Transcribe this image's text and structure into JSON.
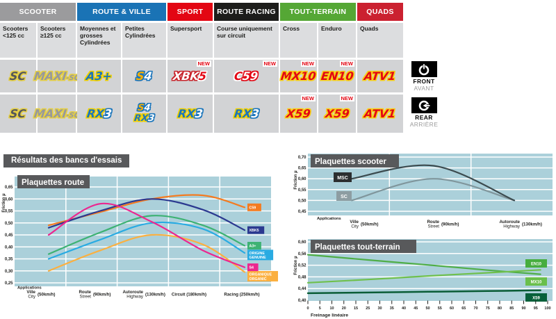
{
  "section_title": "Résultats des bancs d'essais",
  "new_badge": "NEW",
  "position_labels": {
    "front_en": "FRONT",
    "front_fr": "AVANT",
    "rear_en": "REAR",
    "rear_fr": "ARRIÈRE"
  },
  "colors": {
    "panel": "#abd0da",
    "grid": "#ffffff",
    "title_box": "#58595b",
    "axis_text": "#1d1d1b"
  },
  "table": {
    "group_headers": [
      {
        "label": "SCOOTER",
        "bg": "#9b9b9d",
        "span": 2
      },
      {
        "label": "ROUTE & VILLE",
        "bg": "#1a73b5",
        "span": 2
      },
      {
        "label": "SPORT",
        "bg": "#e30613",
        "span": 1
      },
      {
        "label": "ROUTE RACING",
        "bg": "#1d1d1b",
        "span": 1
      },
      {
        "label": "TOUT-TERRAIN",
        "bg": "#55a735",
        "span": 2
      },
      {
        "label": "QUADS",
        "bg": "#cb2130",
        "span": 1
      }
    ],
    "sub_headers": [
      "Scooters <125 cc",
      "Scooters ≥125 cc",
      "Moyennes et grosses Cylindrées",
      "Petites Cylindrées",
      "Supersport",
      "Course uniquement sur circuit",
      "Cross",
      "Enduro",
      "Quads"
    ],
    "products": {
      "sc": {
        "parts": [
          {
            "t": "SC",
            "f": "#54575b",
            "o": "#e5cf45"
          }
        ]
      },
      "maxi_sc": {
        "parts": [
          {
            "t": "MAXI",
            "f": "#97999c",
            "o": "#e5cf45"
          },
          {
            "t": "-SC",
            "f": "#97999c",
            "o": "#e5cf45",
            "small": true
          }
        ]
      },
      "a3plus": {
        "parts": [
          {
            "t": "A3+",
            "f": "#1b75bb",
            "o": "#f0d000"
          }
        ]
      },
      "s4": {
        "parts": [
          {
            "t": "S",
            "f": "#f9b000",
            "o": "#1b75bb"
          },
          {
            "t": "4",
            "f": "#ffffff",
            "o": "#1b75bb"
          }
        ]
      },
      "xbk5": {
        "parts": [
          {
            "t": "XBK",
            "f": "#ffffff",
            "o": "#c9242b"
          },
          {
            "t": "5",
            "f": "#e30613",
            "o": "#ffffff"
          }
        ]
      },
      "c59": {
        "parts": [
          {
            "t": "C",
            "f": "#e30613",
            "o": "#ffffff"
          },
          {
            "t": "59",
            "f": "#ffffff",
            "o": "#e30613"
          }
        ]
      },
      "mx10": {
        "parts": [
          {
            "t": "MX10",
            "f": "#e30613",
            "o": "#f7d117"
          }
        ]
      },
      "en10": {
        "parts": [
          {
            "t": "EN10",
            "f": "#e30613",
            "o": "#f7d117"
          }
        ]
      },
      "atv1": {
        "parts": [
          {
            "t": "ATV1",
            "f": "#e30613",
            "o": "#f7d117"
          }
        ]
      },
      "rx3": {
        "parts": [
          {
            "t": "RX",
            "f": "#1b75bb",
            "o": "#f0d000"
          },
          {
            "t": "3",
            "f": "#ffffff",
            "o": "#1b75bb"
          }
        ]
      },
      "x59": {
        "parts": [
          {
            "t": "X59",
            "f": "#e30613",
            "o": "#f7d117"
          }
        ]
      }
    },
    "rows": [
      {
        "side": "front",
        "cells": [
          {
            "products": [
              "sc"
            ]
          },
          {
            "products": [
              "maxi_sc"
            ]
          },
          {
            "products": [
              "a3plus"
            ]
          },
          {
            "products": [
              "s4"
            ]
          },
          {
            "products": [
              "xbk5"
            ],
            "new": true
          },
          {
            "products": [
              "c59"
            ],
            "new": true
          },
          {
            "products": [
              "mx10"
            ],
            "new": true
          },
          {
            "products": [
              "en10"
            ],
            "new": true
          },
          {
            "products": [
              "atv1"
            ]
          }
        ]
      },
      {
        "side": "rear",
        "cells": [
          {
            "products": [
              "sc"
            ]
          },
          {
            "products": [
              "maxi_sc"
            ]
          },
          {
            "products": [
              "rx3"
            ]
          },
          {
            "products": [
              "s4",
              "rx3"
            ]
          },
          {
            "products": [
              "rx3"
            ]
          },
          {
            "products": [
              "rx3"
            ]
          },
          {
            "products": [
              "x59"
            ],
            "new": true
          },
          {
            "products": [
              "x59"
            ],
            "new": true
          },
          {
            "products": [
              "atv1"
            ]
          }
        ]
      }
    ]
  },
  "chart_data": [
    {
      "id": "route",
      "type": "line",
      "title": "Plaquettes route",
      "ylabel": "Friction µ",
      "ylim": [
        0.25,
        0.65
      ],
      "ytick_step": 0.05,
      "x_note": "Applications",
      "grid": true,
      "legend_position": "right",
      "categories": [
        {
          "fr": "Ville",
          "en": "City",
          "speed": "(50km/h)"
        },
        {
          "fr": "Route",
          "en": "Street",
          "speed": "(90km/h)"
        },
        {
          "fr": "Autoroute",
          "en": "Highway",
          "speed": "(130km/h)"
        },
        {
          "single": "Circuit (180km/h)"
        },
        {
          "single": "Racing (250km/h)"
        }
      ],
      "series": [
        {
          "name": "ORGANIQUE / ORGANIC",
          "label_lines": [
            "ORGANIQUE",
            "ORGANIC"
          ],
          "color": "#fbb040",
          "values": [
            0.3,
            0.385,
            0.45,
            0.41,
            0.295
          ],
          "label_dy": 6
        },
        {
          "name": "ORIGINE / GENUINE",
          "label_lines": [
            "ORIGINE",
            "GENUINE"
          ],
          "color": "#29abe2",
          "values": [
            0.35,
            0.43,
            0.5,
            0.475,
            0.375
          ],
          "label_dy": 3
        },
        {
          "name": "A3+",
          "label_lines": [
            "A3+"
          ],
          "color": "#3db273",
          "values": [
            0.37,
            0.46,
            0.53,
            0.49,
            0.405
          ],
          "label_dy": 0
        },
        {
          "name": "C59",
          "label_lines": [
            "C59"
          ],
          "color": "#f47b20",
          "values": [
            0.49,
            0.545,
            0.6,
            0.615,
            0.565
          ],
          "label_dy": 0
        },
        {
          "name": "XBK5",
          "label_lines": [
            "XBK5"
          ],
          "color": "#2b3990",
          "values": [
            0.48,
            0.55,
            0.6,
            0.555,
            0.47
          ],
          "label_dy": 0
        },
        {
          "name": "S4",
          "label_lines": [
            "S4"
          ],
          "color": "#ec268f",
          "values": [
            0.45,
            0.58,
            0.505,
            0.385,
            0.315
          ],
          "label_dy": 0
        }
      ]
    },
    {
      "id": "scooter",
      "type": "line",
      "title": "Plaquettes scooter",
      "ylabel": "Friction µ",
      "ylim": [
        0.45,
        0.7
      ],
      "ytick_step": 0.05,
      "x_note": "Applications",
      "grid": true,
      "legend_position": "left-boxes",
      "categories": [
        {
          "fr": "Ville",
          "en": "City",
          "speed": "(50km/h)"
        },
        {
          "fr": "Route",
          "en": "Street",
          "speed": "(90km/h)"
        },
        {
          "fr": "Autoroute",
          "en": "Highway",
          "speed": "(130km/h)"
        }
      ],
      "series": [
        {
          "name": "SC",
          "color": "#80969c",
          "box": "#8d9da2",
          "values": [
            0.5,
            0.6,
            0.5
          ]
        },
        {
          "name": "MSC",
          "color": "#3c4b4f",
          "box": "#2c2e30",
          "values": [
            0.6,
            0.66,
            0.5
          ]
        }
      ]
    },
    {
      "id": "tout_terrain",
      "type": "line",
      "title": "Plaquettes tout-terrain",
      "ylabel": "Friction µ",
      "xlabel": "Freinage linéaire",
      "ylim": [
        0.4,
        0.6
      ],
      "ytick_step": 0.04,
      "xlim": [
        0,
        100
      ],
      "grid": true,
      "xticks": [
        "0",
        "5",
        "10",
        "20",
        "15",
        "25",
        "30",
        "35",
        "40",
        "45",
        "50",
        "55",
        "60",
        "65",
        "70",
        "75",
        "80",
        "85",
        "90",
        "95",
        "100"
      ],
      "x": [
        0,
        25,
        50,
        75,
        97
      ],
      "series": [
        {
          "name": "EN10",
          "color": "#4fae47",
          "box": "#47ad3f",
          "values": [
            0.556,
            0.538,
            0.521,
            0.503,
            0.489
          ],
          "label_y": 39
        },
        {
          "name": "MX10",
          "color": "#6fc04d",
          "box": "#6abf4b",
          "values": [
            0.46,
            0.471,
            0.483,
            0.494,
            0.504
          ],
          "label_y": 65
        },
        {
          "name": "X59",
          "color": "#0a5c36",
          "box": "#06603a",
          "values": [
            0.424,
            0.4265,
            0.429,
            0.4315,
            0.434
          ],
          "label_y": 88
        }
      ]
    }
  ]
}
